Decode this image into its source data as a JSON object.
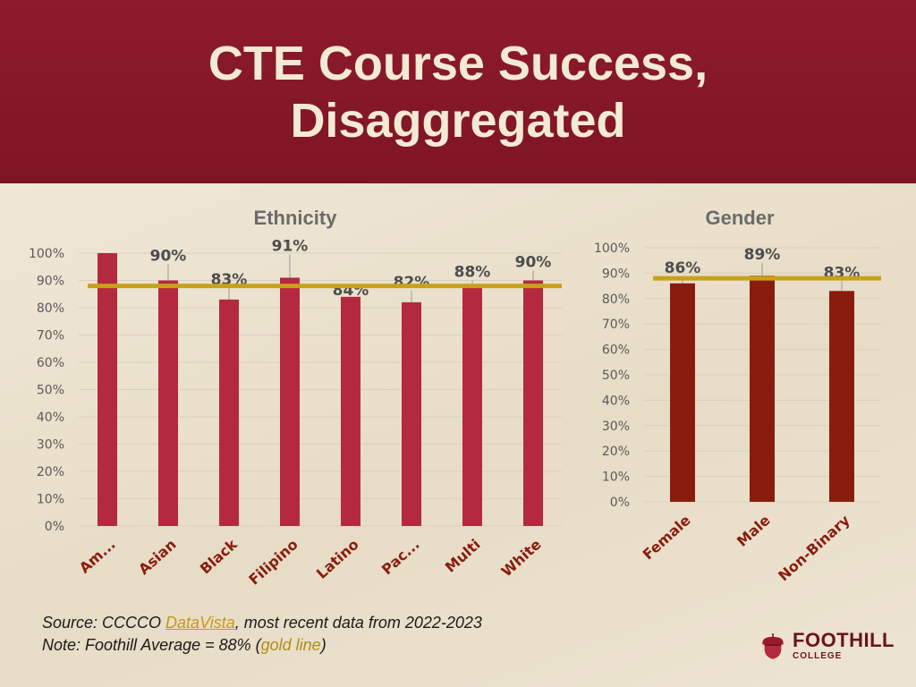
{
  "slide": {
    "title": "CTE Course Success, Disaggregated"
  },
  "footer": {
    "source_prefix": "Source: CCCCO ",
    "source_link": "DataVista",
    "source_suffix": ", most recent data from 2022-2023",
    "note_prefix": "Note: Foothill Average = 88% (",
    "note_gold": "gold line",
    "note_suffix": ")"
  },
  "logo": {
    "name": "FOOTHILL",
    "sub": "COLLEGE"
  },
  "colors": {
    "header": "#8e1b2c",
    "ethnicity_bar": "#b5293f",
    "gender_bar": "#8a1c0e",
    "average_line": "#c8a11a"
  },
  "chart_data": [
    {
      "type": "bar",
      "title": "Ethnicity",
      "categories": [
        "Am...",
        "Asian",
        "Black",
        "Filipino",
        "Latino",
        "Pac...",
        "Multi",
        "White"
      ],
      "values": [
        100,
        90,
        83,
        91,
        84,
        82,
        88,
        90
      ],
      "data_labels": [
        "",
        "90%",
        "83%",
        "91%",
        "84%",
        "82%",
        "88%",
        "90%"
      ],
      "ylim": [
        0,
        100
      ],
      "yticks": [
        "0%",
        "10%",
        "20%",
        "30%",
        "40%",
        "50%",
        "60%",
        "70%",
        "80%",
        "90%",
        "100%"
      ],
      "reference_line": 88,
      "grid": true
    },
    {
      "type": "bar",
      "title": "Gender",
      "categories": [
        "Female",
        "Male",
        "Non-Binary"
      ],
      "values": [
        86,
        89,
        83
      ],
      "data_labels": [
        "86%",
        "89%",
        "83%"
      ],
      "ylim": [
        0,
        100
      ],
      "yticks": [
        "0%",
        "10%",
        "20%",
        "30%",
        "40%",
        "50%",
        "60%",
        "70%",
        "80%",
        "90%",
        "100%"
      ],
      "reference_line": 88,
      "grid": true
    }
  ]
}
